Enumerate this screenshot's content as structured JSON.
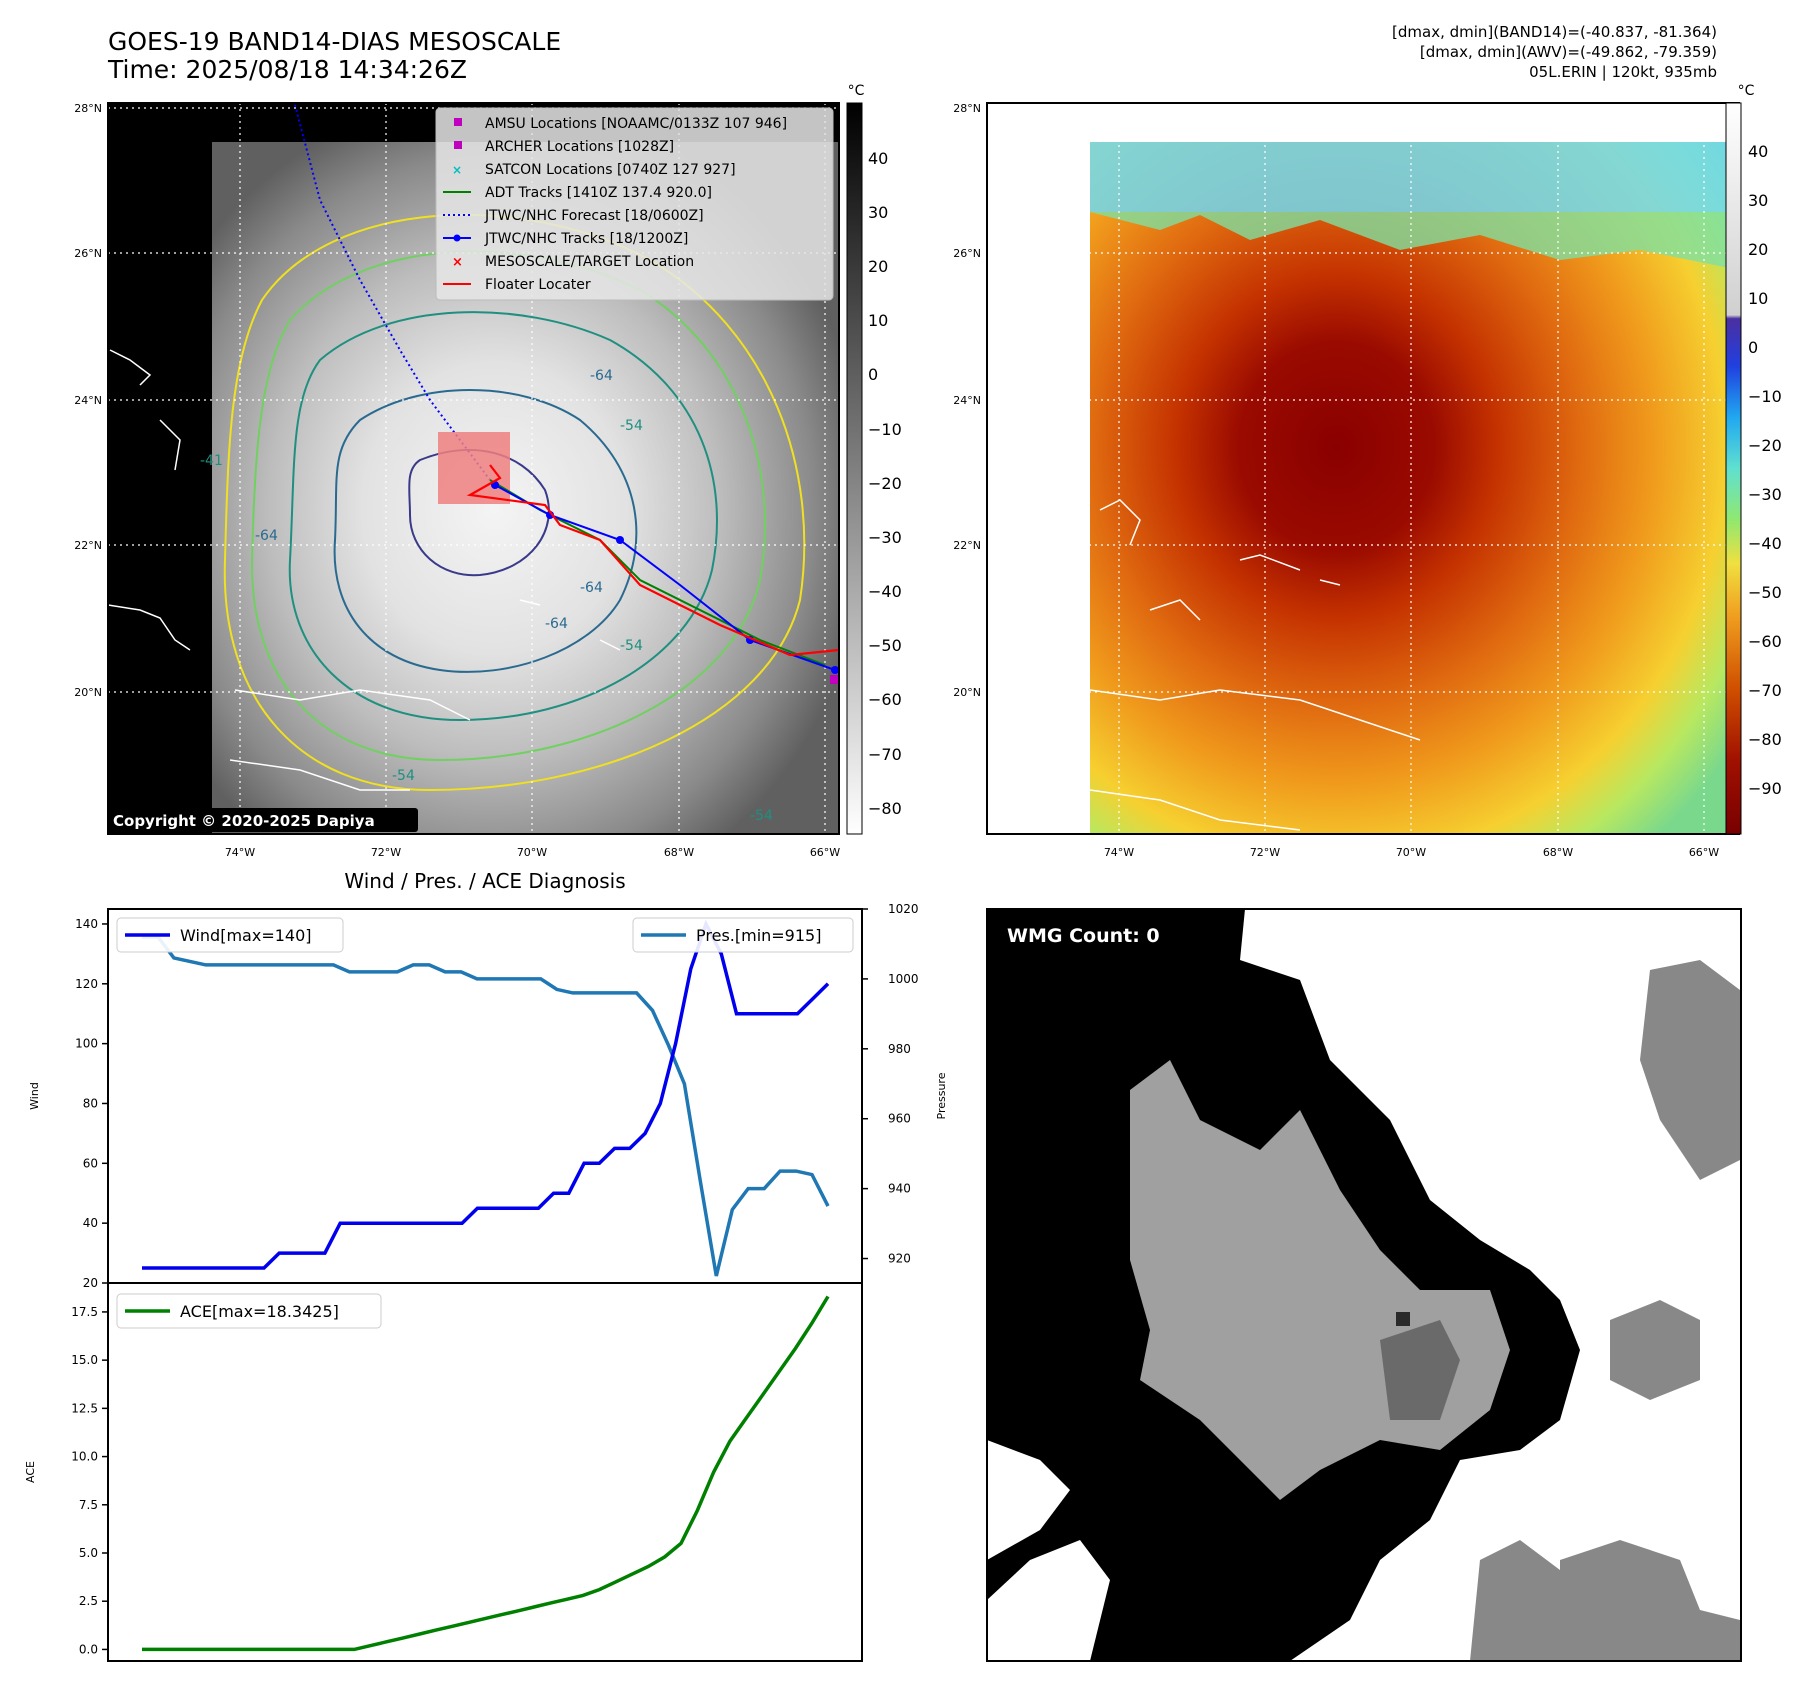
{
  "header": {
    "title_line1": "GOES-19 BAND14-DIAS MESOSCALE",
    "title_line2": "Time: 2025/08/18 14:34:26Z",
    "stats_line1": "[dmax, dmin](BAND14)=(-40.837, -81.364)",
    "stats_line2": "[dmax, dmin](AWV)=(-49.862, -79.359)",
    "stats_line3": "05L.ERIN | 120kt, 935mb"
  },
  "map_axes": {
    "lat_labels": [
      "28°N",
      "26°N",
      "24°N",
      "22°N",
      "20°N"
    ],
    "lon_labels": [
      "74°W",
      "72°W",
      "70°W",
      "68°W",
      "66°W"
    ]
  },
  "gray_colorbar": {
    "unit": "°C",
    "ticks": [
      "40",
      "30",
      "20",
      "10",
      "0",
      "−10",
      "−20",
      "−30",
      "−40",
      "−50",
      "−60",
      "−70",
      "−80"
    ]
  },
  "color_colorbar": {
    "unit": "°C",
    "ticks": [
      "40",
      "30",
      "20",
      "10",
      "0",
      "−10",
      "−20",
      "−30",
      "−40",
      "−50",
      "−60",
      "−70",
      "−80",
      "−90"
    ]
  },
  "legend": {
    "items": [
      {
        "label": "AMSU Locations [NOAAMC/0133Z 107 946]",
        "marker": "square",
        "color": "#bf00bf"
      },
      {
        "label": "ARCHER Locations [1028Z]",
        "marker": "square",
        "color": "#bf00bf"
      },
      {
        "label": "SATCON Locations [0740Z 127 927]",
        "marker": "x",
        "color": "#00bfbf"
      },
      {
        "label": "ADT Tracks [1410Z 137.4 920.0]",
        "marker": "line",
        "color": "#008000"
      },
      {
        "label": "JTWC/NHC Forecast [18/0600Z]",
        "marker": "dotted",
        "color": "#0000ff"
      },
      {
        "label": "JTWC/NHC Tracks [18/1200Z]",
        "marker": "line-dot",
        "color": "#0000ff"
      },
      {
        "label": "MESOSCALE/TARGET Location",
        "marker": "x",
        "color": "#ff0000"
      },
      {
        "label": "Floater Locater",
        "marker": "line",
        "color": "#ff0000"
      }
    ]
  },
  "copyright": "Copyright © 2020-2025 Dapiya",
  "contour_labels": [
    "-64",
    "-64",
    "-64",
    "-64",
    "-54",
    "-54",
    "-54",
    "-54",
    "-41"
  ],
  "wmg": {
    "label": "WMG Count: 0"
  },
  "chart_data": [
    {
      "type": "line",
      "title": "Wind / Pres. / ACE Diagnosis",
      "ylabel": "Wind",
      "ylabel2": "Pressure",
      "ylim": [
        20,
        145
      ],
      "ylim2": [
        913,
        1020
      ],
      "yticks": [
        "140",
        "120",
        "100",
        "80",
        "60",
        "40",
        "20"
      ],
      "yticks2": [
        "1020",
        "1000",
        "980",
        "960",
        "940",
        "920"
      ],
      "series": [
        {
          "name": "Wind[max=140]",
          "color": "#0000ee",
          "axis": "left",
          "values": [
            25,
            25,
            25,
            25,
            25,
            25,
            25,
            25,
            25,
            30,
            30,
            30,
            30,
            40,
            40,
            40,
            40,
            40,
            40,
            40,
            40,
            40,
            45,
            45,
            45,
            45,
            45,
            50,
            50,
            60,
            60,
            65,
            65,
            70,
            80,
            100,
            125,
            140,
            130,
            110,
            110,
            110,
            110,
            110,
            115,
            120
          ]
        },
        {
          "name": "Pres.[min=915]",
          "color": "#1f77b4",
          "axis": "right",
          "values": [
            1012,
            1012,
            1006,
            1005,
            1004,
            1004,
            1004,
            1004,
            1004,
            1004,
            1004,
            1004,
            1004,
            1002,
            1002,
            1002,
            1002,
            1004,
            1004,
            1002,
            1002,
            1000,
            1000,
            1000,
            1000,
            1000,
            997,
            996,
            996,
            996,
            996,
            996,
            991,
            981,
            970,
            942,
            915,
            934,
            940,
            940,
            945,
            945,
            944,
            935
          ]
        }
      ]
    },
    {
      "type": "line",
      "ylabel": "ACE",
      "ylim": [
        -0.6,
        19.0
      ],
      "yticks": [
        "17.5",
        "15.0",
        "12.5",
        "10.0",
        "7.5",
        "5.0",
        "2.5",
        "0.0"
      ],
      "series": [
        {
          "name": "ACE[max=18.3425]",
          "color": "#008000",
          "values": [
            0,
            0,
            0,
            0,
            0,
            0,
            0,
            0,
            0,
            0,
            0,
            0,
            0,
            0,
            0.2,
            0.4,
            0.6,
            0.8,
            1.0,
            1.2,
            1.4,
            1.6,
            1.8,
            2.0,
            2.2,
            2.4,
            2.6,
            2.8,
            3.1,
            3.5,
            3.9,
            4.3,
            4.8,
            5.5,
            7.2,
            9.2,
            10.8,
            12.0,
            13.2,
            14.4,
            15.6,
            16.9,
            18.3
          ]
        }
      ]
    }
  ]
}
